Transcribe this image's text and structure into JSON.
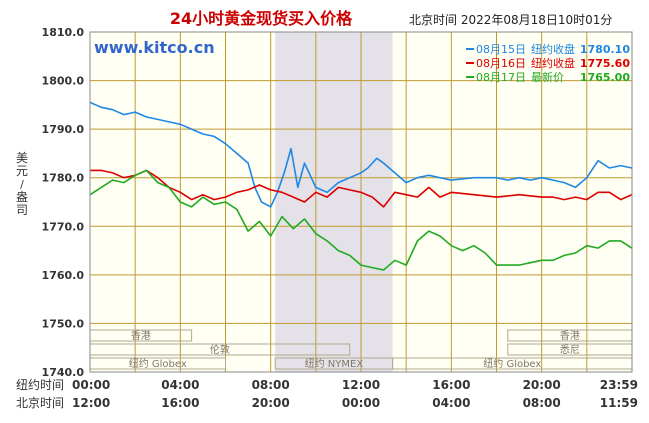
{
  "chart_data": {
    "type": "line",
    "title": "24小时黄金现货买入价格",
    "watermark": "www.kitco.cn",
    "timestamp": "北京时间 2022年08月18日10时01分",
    "ylabel": "美元/盎司",
    "ylim": [
      1740,
      1810
    ],
    "yticks": [
      "1810.0",
      "1800.0",
      "1790.0",
      "1780.0",
      "1770.0",
      "1760.0",
      "1750.0",
      "1740.0"
    ],
    "ytick_values": [
      1810,
      1800,
      1790,
      1780,
      1770,
      1760,
      1750,
      1740
    ],
    "xlim": [
      0,
      24
    ],
    "xrow_ny_label": "纽约时间",
    "xrow_bj_label": "北京时间",
    "xticks_ny": [
      "00:00",
      "04:00",
      "08:00",
      "12:00",
      "16:00",
      "20:00",
      "23:59"
    ],
    "xticks_bj": [
      "12:00",
      "16:00",
      "20:00",
      "00:00",
      "04:00",
      "08:00",
      "11:59"
    ],
    "xtick_hours": [
      0,
      4,
      8,
      12,
      16,
      20,
      24
    ],
    "highlight_hours": [
      8.2,
      13.4
    ],
    "markets": [
      {
        "label": "香港",
        "start": 0,
        "end": 4.5
      },
      {
        "label": "香港",
        "start": 18.5,
        "end": 24
      },
      {
        "label": "伦敦",
        "start": 0,
        "end": 11.5
      },
      {
        "label": "悉尼",
        "start": 18.5,
        "end": 24
      },
      {
        "label": "纽约 Globex",
        "start": 0,
        "end": 6
      },
      {
        "label": "纽约 NYMEX",
        "start": 8.2,
        "end": 13.4
      },
      {
        "label": "纽约 Globex",
        "start": 13.4,
        "end": 24
      }
    ],
    "legend": [
      {
        "date": "08月15日",
        "label": "纽约收盘",
        "value": "1780.10",
        "color": "#1e88e5"
      },
      {
        "date": "08月16日",
        "label": "纽约收盘",
        "value": "1775.60",
        "color": "#dd0000"
      },
      {
        "date": "08月17日",
        "label": "最新价",
        "value": "1765.00",
        "color": "#22aa22"
      }
    ],
    "series": [
      {
        "name": "08月15日",
        "color": "#1e88e5",
        "x": [
          0,
          0.5,
          1,
          1.5,
          2,
          2.5,
          3,
          3.5,
          4,
          4.5,
          5,
          5.5,
          6,
          6.5,
          7,
          7.3,
          7.6,
          8,
          8.3,
          8.6,
          8.9,
          9.2,
          9.5,
          9.8,
          10,
          10.5,
          11,
          11.5,
          12,
          12.3,
          12.7,
          13,
          13.5,
          14,
          14.5,
          15,
          16,
          17,
          18,
          18.5,
          19,
          19.5,
          20,
          20.5,
          21,
          21.5,
          22,
          22.5,
          23,
          23.5,
          23.99
        ],
        "y": [
          1795.5,
          1794.5,
          1794,
          1793,
          1793.5,
          1792.5,
          1792,
          1791.5,
          1791,
          1790,
          1789,
          1788.5,
          1787,
          1785,
          1783,
          1778,
          1775,
          1774,
          1777,
          1781,
          1786,
          1778,
          1783,
          1780,
          1778,
          1777,
          1779,
          1780,
          1781,
          1782,
          1784,
          1783,
          1781,
          1779,
          1780,
          1780.5,
          1779.5,
          1780,
          1780,
          1779.5,
          1780,
          1779.5,
          1780,
          1779.5,
          1779,
          1778,
          1780,
          1783.5,
          1782,
          1782.5,
          1782
        ]
      },
      {
        "name": "08月16日",
        "color": "#dd0000",
        "x": [
          0,
          0.5,
          1,
          1.5,
          2,
          2.5,
          3,
          3.5,
          4,
          4.5,
          5,
          5.5,
          6,
          6.5,
          7,
          7.5,
          8,
          8.5,
          9,
          9.5,
          10,
          10.5,
          11,
          11.5,
          12,
          12.5,
          13,
          13.5,
          14,
          14.5,
          15,
          15.5,
          16,
          17,
          18,
          19,
          20,
          20.5,
          21,
          21.5,
          22,
          22.5,
          23,
          23.5,
          23.99
        ],
        "y": [
          1781.5,
          1781.5,
          1781,
          1780,
          1780.5,
          1781.5,
          1780,
          1778,
          1777,
          1775.5,
          1776.5,
          1775.5,
          1776,
          1777,
          1777.5,
          1778.5,
          1777.5,
          1777,
          1776,
          1775,
          1777,
          1776,
          1778,
          1777.5,
          1777,
          1776,
          1774,
          1777,
          1776.5,
          1776,
          1778,
          1776,
          1777,
          1776.5,
          1776,
          1776.5,
          1776,
          1776,
          1775.5,
          1776,
          1775.5,
          1777,
          1777,
          1775.5,
          1776.5
        ]
      },
      {
        "name": "08月17日",
        "color": "#22aa22",
        "x": [
          0,
          0.5,
          1,
          1.5,
          2,
          2.5,
          3,
          3.5,
          4,
          4.5,
          5,
          5.5,
          6,
          6.5,
          7,
          7.5,
          8,
          8.5,
          9,
          9.5,
          10,
          10.5,
          11,
          11.5,
          12,
          12.5,
          13,
          13.5,
          14,
          14.5,
          15,
          15.5,
          16,
          16.5,
          17,
          17.5,
          18,
          18.5,
          19,
          19.5,
          20,
          20.5,
          21,
          21.5,
          22,
          22.5,
          23,
          23.5,
          23.99
        ],
        "y": [
          1776.5,
          1778,
          1779.5,
          1779,
          1780.5,
          1781.5,
          1779,
          1778,
          1775,
          1774,
          1776,
          1774.5,
          1775,
          1773.5,
          1769,
          1771,
          1768,
          1772,
          1769.5,
          1771.5,
          1768.5,
          1767,
          1765,
          1764,
          1762,
          1761.5,
          1761,
          1763,
          1762,
          1767,
          1769,
          1768,
          1766,
          1765,
          1766,
          1764.5,
          1762,
          1762,
          1762,
          1762.5,
          1763,
          1763,
          1764,
          1764.5,
          1766,
          1765.5,
          1767,
          1767,
          1765.5
        ]
      }
    ]
  }
}
